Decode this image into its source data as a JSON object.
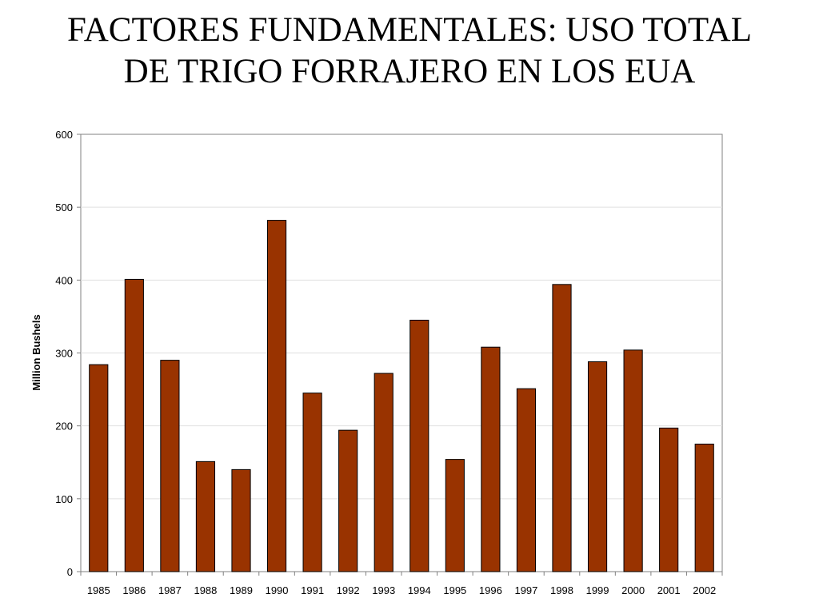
{
  "slide": {
    "title_line1": "FACTORES FUNDAMENTALES: USO TOTAL",
    "title_line2": "DE TRIGO FORRAJERO EN LOS EUA"
  },
  "chart_data": {
    "type": "bar",
    "title": "",
    "xlabel": "",
    "ylabel": "Million Bushels",
    "ylim": [
      0,
      600
    ],
    "yticks": [
      0,
      100,
      200,
      300,
      400,
      500,
      600
    ],
    "grid": true,
    "legend": "none",
    "bar_color": "#993300",
    "categories": [
      "1985",
      "1986",
      "1987",
      "1988",
      "1989",
      "1990",
      "1991",
      "1992",
      "1993",
      "1994",
      "1995",
      "1996",
      "1997",
      "1998",
      "1999",
      "2000",
      "2001",
      "2002"
    ],
    "values": [
      284,
      401,
      290,
      151,
      140,
      482,
      245,
      194,
      272,
      345,
      154,
      308,
      251,
      394,
      288,
      304,
      197,
      175
    ]
  }
}
